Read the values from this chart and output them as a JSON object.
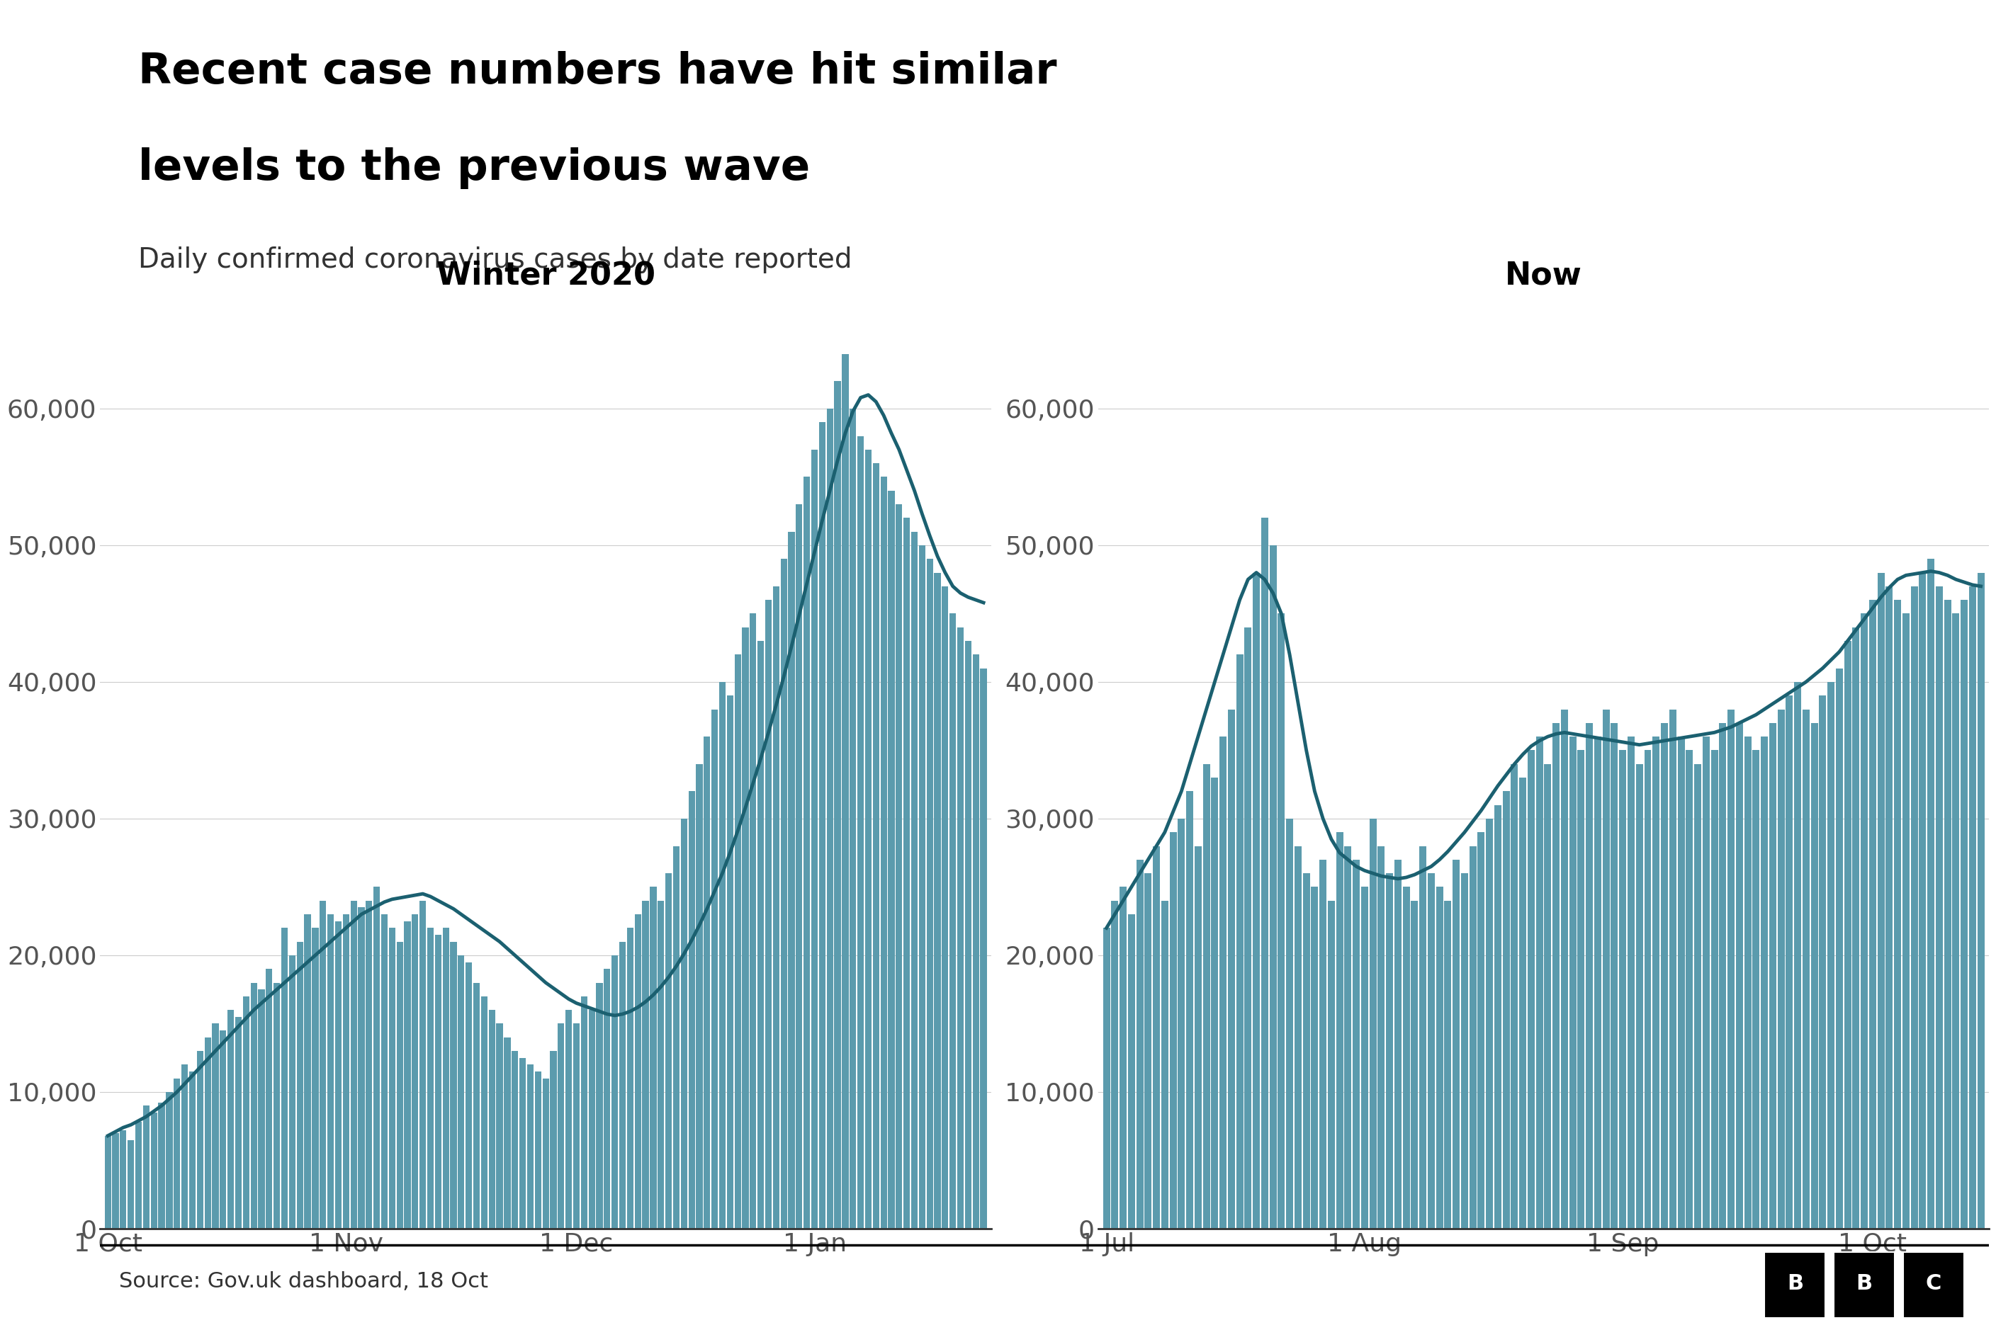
{
  "title_line1": "Recent case numbers have hit similar",
  "title_line2": "levels to the previous wave",
  "subtitle": "Daily confirmed coronavirus cases by date reported",
  "source": "Source: Gov.uk dashboard, 18 Oct",
  "panel1_title": "Winter 2020",
  "panel2_title": "Now",
  "bar_color": "#5B9BAD",
  "line_color": "#1B6070",
  "background_color": "#FFFFFF",
  "axis_color": "#333333",
  "grid_color": "#CCCCCC",
  "ylim": [
    0,
    68000
  ],
  "yticks": [
    0,
    10000,
    20000,
    30000,
    40000,
    50000,
    60000
  ],
  "panel1_xtick_labels": [
    "1 Oct",
    "1 Nov",
    "1 Dec",
    "1 Jan"
  ],
  "panel2_xtick_labels": [
    "1 Jul",
    "1 Aug",
    "1 Sep",
    "1 Oct"
  ],
  "title_fontsize": 44,
  "subtitle_fontsize": 28,
  "panel_title_fontsize": 32,
  "tick_fontsize": 26,
  "source_fontsize": 22,
  "winter2020_daily": [
    6800,
    7000,
    7200,
    6500,
    7800,
    9000,
    8500,
    9200,
    10000,
    11000,
    12000,
    11500,
    13000,
    14000,
    15000,
    14500,
    16000,
    15500,
    17000,
    18000,
    17500,
    19000,
    18000,
    22000,
    20000,
    21000,
    23000,
    22000,
    24000,
    23000,
    22500,
    23000,
    24000,
    23500,
    24000,
    25000,
    23000,
    22000,
    21000,
    22500,
    23000,
    24000,
    22000,
    21500,
    22000,
    21000,
    20000,
    19500,
    18000,
    17000,
    16000,
    15000,
    14000,
    13000,
    12500,
    12000,
    11500,
    11000,
    13000,
    15000,
    16000,
    15000,
    17000,
    16000,
    18000,
    19000,
    20000,
    21000,
    22000,
    23000,
    24000,
    25000,
    24000,
    26000,
    28000,
    30000,
    32000,
    34000,
    36000,
    38000,
    40000,
    39000,
    42000,
    44000,
    45000,
    43000,
    46000,
    47000,
    49000,
    51000,
    53000,
    55000,
    57000,
    59000,
    60000,
    62000,
    64000,
    60000,
    58000,
    57000,
    56000,
    55000,
    54000,
    53000,
    52000,
    51000,
    50000,
    49000,
    48000,
    47000,
    45000,
    44000,
    43000,
    42000,
    41000
  ],
  "winter2020_7day": [
    6800,
    7100,
    7400,
    7600,
    7900,
    8200,
    8600,
    9000,
    9500,
    10000,
    10600,
    11200,
    11800,
    12400,
    13000,
    13600,
    14200,
    14800,
    15400,
    16000,
    16500,
    17000,
    17500,
    18000,
    18500,
    19000,
    19500,
    20000,
    20500,
    21000,
    21500,
    22000,
    22500,
    23000,
    23300,
    23600,
    23900,
    24100,
    24200,
    24300,
    24400,
    24500,
    24300,
    24000,
    23700,
    23400,
    23000,
    22600,
    22200,
    21800,
    21400,
    21000,
    20500,
    20000,
    19500,
    19000,
    18500,
    18000,
    17600,
    17200,
    16800,
    16500,
    16300,
    16100,
    15900,
    15700,
    15600,
    15700,
    15900,
    16200,
    16600,
    17100,
    17700,
    18400,
    19200,
    20100,
    21100,
    22200,
    23400,
    24700,
    26000,
    27500,
    29100,
    30800,
    32600,
    34400,
    36300,
    38300,
    40400,
    42600,
    44900,
    47200,
    49500,
    51800,
    54000,
    56200,
    58200,
    59800,
    60800,
    61000,
    60500,
    59500,
    58200,
    57000,
    55500,
    54000,
    52300,
    50700,
    49200,
    48000,
    47000,
    46500,
    46200,
    46000,
    45800
  ],
  "now_daily": [
    22000,
    24000,
    25000,
    23000,
    27000,
    26000,
    28000,
    24000,
    29000,
    30000,
    32000,
    28000,
    34000,
    33000,
    36000,
    38000,
    42000,
    44000,
    48000,
    52000,
    50000,
    45000,
    30000,
    28000,
    26000,
    25000,
    27000,
    24000,
    29000,
    28000,
    27000,
    25000,
    30000,
    28000,
    26000,
    27000,
    25000,
    24000,
    28000,
    26000,
    25000,
    24000,
    27000,
    26000,
    28000,
    29000,
    30000,
    31000,
    32000,
    34000,
    33000,
    35000,
    36000,
    34000,
    37000,
    38000,
    36000,
    35000,
    37000,
    36000,
    38000,
    37000,
    35000,
    36000,
    34000,
    35000,
    36000,
    37000,
    38000,
    36000,
    35000,
    34000,
    36000,
    35000,
    37000,
    38000,
    37000,
    36000,
    35000,
    36000,
    37000,
    38000,
    39000,
    40000,
    38000,
    37000,
    39000,
    40000,
    41000,
    43000,
    44000,
    45000,
    46000,
    48000,
    47000,
    46000,
    45000,
    47000,
    48000,
    49000,
    47000,
    46000,
    45000,
    46000,
    47000,
    48000
  ],
  "now_7day": [
    22000,
    23000,
    24000,
    25000,
    26000,
    27000,
    28000,
    29000,
    30500,
    32000,
    34000,
    36000,
    38000,
    40000,
    42000,
    44000,
    46000,
    47500,
    48000,
    47500,
    46500,
    45000,
    42000,
    38500,
    35000,
    32000,
    30000,
    28500,
    27500,
    27000,
    26500,
    26200,
    26000,
    25800,
    25700,
    25600,
    25700,
    25900,
    26200,
    26500,
    27000,
    27600,
    28300,
    29000,
    29800,
    30600,
    31500,
    32400,
    33200,
    34000,
    34700,
    35300,
    35700,
    36000,
    36200,
    36300,
    36200,
    36100,
    36000,
    35900,
    35800,
    35700,
    35600,
    35500,
    35400,
    35500,
    35600,
    35700,
    35800,
    35900,
    36000,
    36100,
    36200,
    36300,
    36500,
    36700,
    37000,
    37300,
    37600,
    38000,
    38400,
    38800,
    39200,
    39600,
    40000,
    40500,
    41000,
    41600,
    42200,
    43000,
    43800,
    44600,
    45400,
    46200,
    46900,
    47500,
    47800,
    47900,
    48000,
    48100,
    48000,
    47800,
    47500,
    47300,
    47100,
    47000
  ]
}
